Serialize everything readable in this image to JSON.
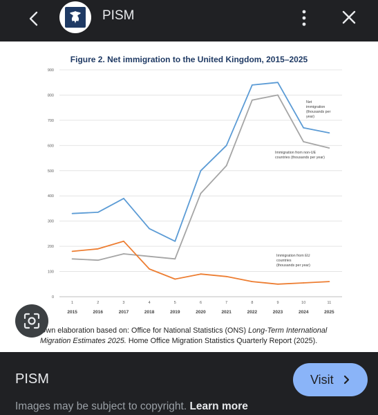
{
  "header": {
    "site_name": "PISM",
    "back_icon": "back-arrow-icon",
    "menu_icon": "more-vert-icon",
    "close_icon": "close-icon"
  },
  "figure": {
    "title": "Figure 2. Net immigration to the United Kingdom, 2015–2025",
    "caption_plain_1": "Own elaboration based on: Office for National Statistics (ONS) ",
    "caption_italic": "Long-Term International Migration Estimates 2025.",
    "caption_plain_2": " Home Office Migration Statistics Quarterly Report (2025)."
  },
  "chart_data": {
    "type": "line",
    "title": "Figure 2. Net immigration to the United Kingdom, 2015–2025",
    "index_labels": [
      "1",
      "2",
      "3",
      "4",
      "5",
      "6",
      "7",
      "8",
      "9",
      "10",
      "11"
    ],
    "categories": [
      "2015",
      "2016",
      "2017",
      "2018",
      "2019",
      "2020",
      "2021",
      "2022",
      "2023",
      "2024",
      "2025"
    ],
    "ylim": [
      0,
      900
    ],
    "yticks": [
      0,
      100,
      200,
      300,
      400,
      500,
      600,
      700,
      800,
      900
    ],
    "grid": true,
    "series": [
      {
        "name": "Net immigration (thousands per year)",
        "color": "#5b9bd5",
        "values": [
          330,
          335,
          390,
          270,
          220,
          500,
          600,
          840,
          850,
          670,
          650
        ]
      },
      {
        "name": "Immigration from non-UE countries (thousands per year)",
        "color": "#a5a5a5",
        "values": [
          150,
          145,
          170,
          160,
          150,
          410,
          520,
          780,
          800,
          615,
          590
        ]
      },
      {
        "name": "Immigration from EU countries (thousands per year)",
        "color": "#ed7d31",
        "values": [
          180,
          190,
          220,
          110,
          70,
          90,
          80,
          60,
          50,
          55,
          60
        ]
      }
    ],
    "annotations": [
      {
        "series": 0,
        "lines": [
          "Net",
          "immigration",
          "(thousands per",
          "year)"
        ]
      },
      {
        "series": 1,
        "lines": [
          "Immigration from non-UE",
          "countries (thousands per year)"
        ]
      },
      {
        "series": 2,
        "lines": [
          "Immigration from EU",
          "countries",
          "(thousands per year)"
        ]
      }
    ]
  },
  "footer": {
    "source_name": "PISM",
    "visit_label": "Visit",
    "copyright_text": "Images may be subject to copyright. ",
    "learn_more": "Learn more"
  },
  "colors": {
    "background": "#202124",
    "visit_button": "#8ab4f8",
    "figure_title": "#1f3a64"
  }
}
